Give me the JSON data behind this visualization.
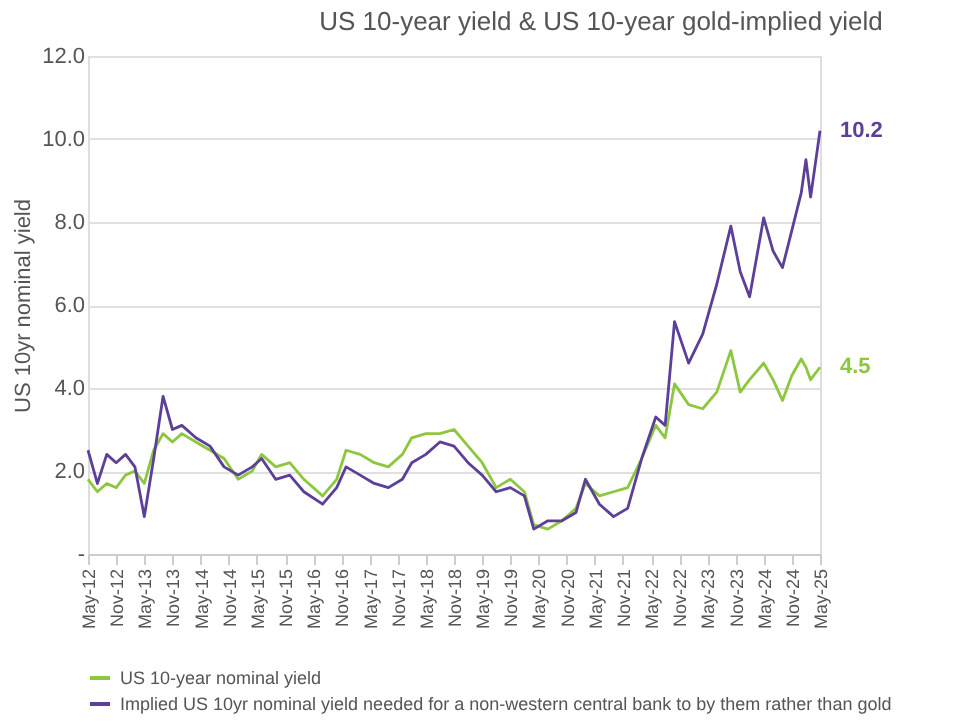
{
  "chart_data": {
    "type": "line",
    "title": "US 10-year yield & US 10-year gold-implied yield",
    "ylabel": "US 10yr nominal yield",
    "x": [
      "2012-05",
      "2012-07",
      "2012-09",
      "2012-11",
      "2013-01",
      "2013-03",
      "2013-05",
      "2013-07",
      "2013-09",
      "2013-11",
      "2014-01",
      "2014-04",
      "2014-07",
      "2014-10",
      "2015-01",
      "2015-04",
      "2015-06",
      "2015-09",
      "2015-12",
      "2016-03",
      "2016-07",
      "2016-10",
      "2016-12",
      "2017-03",
      "2017-06",
      "2017-09",
      "2017-12",
      "2018-02",
      "2018-05",
      "2018-08",
      "2018-11",
      "2019-02",
      "2019-05",
      "2019-08",
      "2019-11",
      "2020-02",
      "2020-04",
      "2020-07",
      "2020-10",
      "2021-01",
      "2021-03",
      "2021-06",
      "2021-09",
      "2021-12",
      "2022-03",
      "2022-06",
      "2022-08",
      "2022-10",
      "2023-01",
      "2023-04",
      "2023-07",
      "2023-10",
      "2023-12",
      "2024-02",
      "2024-05",
      "2024-07",
      "2024-09",
      "2024-11",
      "2025-01",
      "2025-02",
      "2025-03",
      "2025-05"
    ],
    "series": [
      {
        "name": "US 10-year nominal yield",
        "color": "#8dc63f",
        "values": [
          1.8,
          1.5,
          1.7,
          1.6,
          1.9,
          2.0,
          1.7,
          2.5,
          2.9,
          2.7,
          2.9,
          2.7,
          2.5,
          2.3,
          1.8,
          2.0,
          2.4,
          2.1,
          2.2,
          1.8,
          1.4,
          1.8,
          2.5,
          2.4,
          2.2,
          2.1,
          2.4,
          2.8,
          2.9,
          2.9,
          3.0,
          2.6,
          2.2,
          1.6,
          1.8,
          1.5,
          0.7,
          0.6,
          0.8,
          1.1,
          1.7,
          1.4,
          1.5,
          1.6,
          2.3,
          3.1,
          2.8,
          4.1,
          3.6,
          3.5,
          3.9,
          4.9,
          3.9,
          4.2,
          4.6,
          4.2,
          3.7,
          4.3,
          4.7,
          4.5,
          4.2,
          4.5
        ]
      },
      {
        "name": "Implied US 10yr nominal yield needed for a non-western central bank to by them rather than gold",
        "color": "#5b3f99",
        "values": [
          2.5,
          1.7,
          2.4,
          2.2,
          2.4,
          2.1,
          0.9,
          2.3,
          3.8,
          3.0,
          3.1,
          2.8,
          2.6,
          2.1,
          1.9,
          2.1,
          2.3,
          1.8,
          1.9,
          1.5,
          1.2,
          1.6,
          2.1,
          1.9,
          1.7,
          1.6,
          1.8,
          2.2,
          2.4,
          2.7,
          2.6,
          2.2,
          1.9,
          1.5,
          1.6,
          1.4,
          0.6,
          0.8,
          0.8,
          1.0,
          1.8,
          1.2,
          0.9,
          1.1,
          2.3,
          3.3,
          3.1,
          5.6,
          4.6,
          5.3,
          6.5,
          7.9,
          6.8,
          6.2,
          8.1,
          7.3,
          6.9,
          7.8,
          8.7,
          9.5,
          8.6,
          10.2
        ]
      }
    ],
    "annotations": [
      {
        "text": "4.5",
        "x": "2025-05",
        "y": 4.5
      },
      {
        "text": "10.2",
        "x": "2025-05",
        "y": 10.2
      }
    ],
    "xlim": [
      "2012-05",
      "2025-05"
    ],
    "xticks": [
      {
        "value": "2012-05",
        "label": "May-12"
      },
      {
        "value": "2012-11",
        "label": "Nov-12"
      },
      {
        "value": "2013-05",
        "label": "May-13"
      },
      {
        "value": "2013-11",
        "label": "Nov-13"
      },
      {
        "value": "2014-05",
        "label": "May-14"
      },
      {
        "value": "2014-11",
        "label": "Nov-14"
      },
      {
        "value": "2015-05",
        "label": "May-15"
      },
      {
        "value": "2015-11",
        "label": "Nov-15"
      },
      {
        "value": "2016-05",
        "label": "May-16"
      },
      {
        "value": "2016-11",
        "label": "Nov-16"
      },
      {
        "value": "2017-05",
        "label": "May-17"
      },
      {
        "value": "2017-11",
        "label": "Nov-17"
      },
      {
        "value": "2018-05",
        "label": "May-18"
      },
      {
        "value": "2018-11",
        "label": "Nov-18"
      },
      {
        "value": "2019-05",
        "label": "May-19"
      },
      {
        "value": "2019-11",
        "label": "Nov-19"
      },
      {
        "value": "2020-05",
        "label": "May-20"
      },
      {
        "value": "2020-11",
        "label": "Nov-20"
      },
      {
        "value": "2021-05",
        "label": "May-21"
      },
      {
        "value": "2021-11",
        "label": "Nov-21"
      },
      {
        "value": "2022-05",
        "label": "May-22"
      },
      {
        "value": "2022-11",
        "label": "Nov-22"
      },
      {
        "value": "2023-05",
        "label": "May-23"
      },
      {
        "value": "2023-11",
        "label": "Nov-23"
      },
      {
        "value": "2024-05",
        "label": "May-24"
      },
      {
        "value": "2024-11",
        "label": "Nov-24"
      },
      {
        "value": "2025-05",
        "label": "May-25"
      }
    ],
    "ylim": [
      0,
      12
    ],
    "yticks": [
      {
        "value": 0,
        "label": "-"
      },
      {
        "value": 2,
        "label": "2.0"
      },
      {
        "value": 4,
        "label": "4.0"
      },
      {
        "value": 6,
        "label": "6.0"
      },
      {
        "value": 8,
        "label": "8.0"
      },
      {
        "value": 10,
        "label": "10.0"
      },
      {
        "value": 12,
        "label": "12.0"
      }
    ],
    "grid": "y",
    "legend": "bottom",
    "marker": "none",
    "line_style": "solid"
  }
}
